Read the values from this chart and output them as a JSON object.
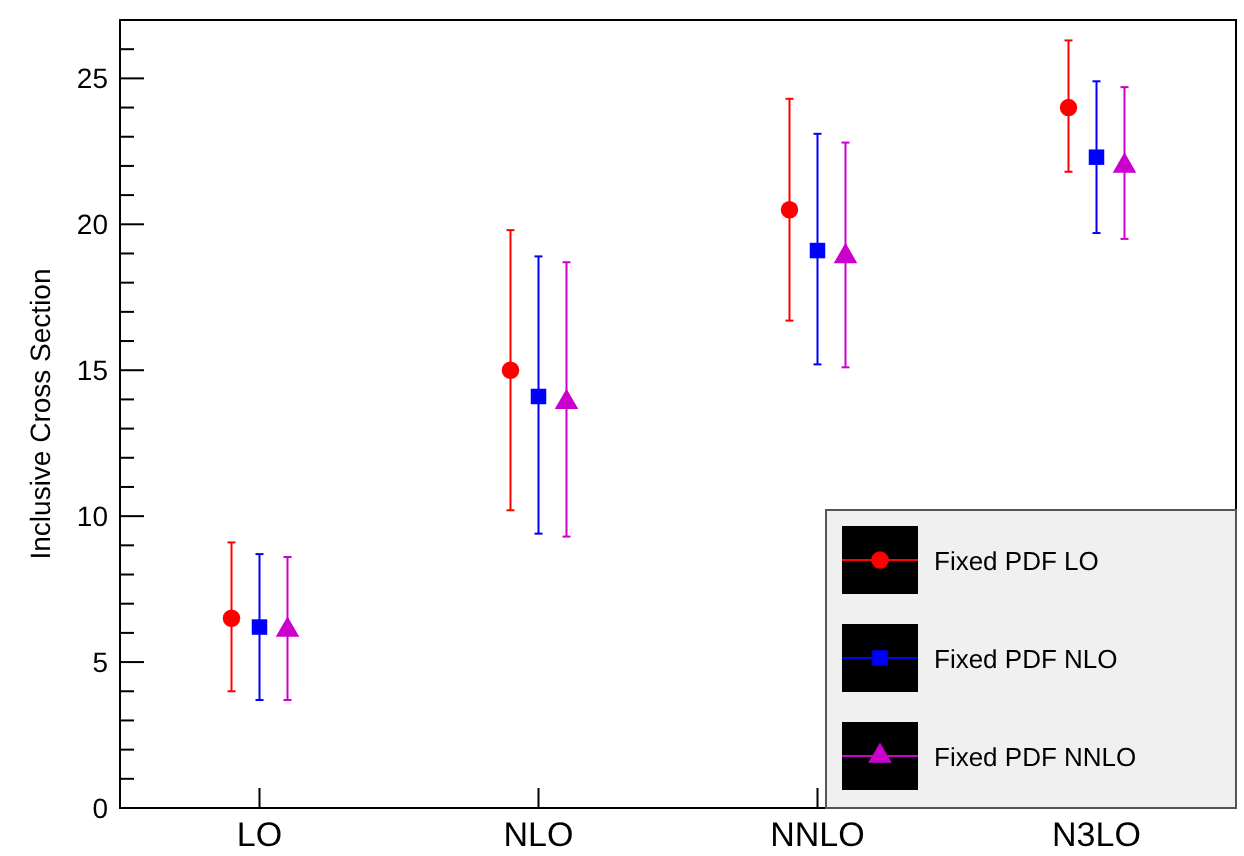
{
  "chart_data": {
    "type": "scatter",
    "ylabel": "Inclusive Cross Section",
    "categories": [
      "LO",
      "NLO",
      "NNLO",
      "N3LO"
    ],
    "series": [
      {
        "name": "Fixed PDF LO",
        "color": "#ff0000",
        "marker": "circle",
        "values": [
          6.5,
          15.0,
          20.5,
          24.0
        ],
        "errors": [
          [
            4.0,
            9.1
          ],
          [
            10.2,
            19.8
          ],
          [
            16.7,
            24.3
          ],
          [
            21.8,
            26.3
          ]
        ]
      },
      {
        "name": "Fixed PDF NLO",
        "color": "#0000ff",
        "marker": "square",
        "values": [
          6.2,
          14.1,
          19.1,
          22.3
        ],
        "errors": [
          [
            3.7,
            8.7
          ],
          [
            9.4,
            18.9
          ],
          [
            15.2,
            23.1
          ],
          [
            19.7,
            24.9
          ]
        ]
      },
      {
        "name": "Fixed PDF NNLO",
        "color": "#cc00cc",
        "marker": "triangle",
        "values": [
          6.1,
          13.9,
          18.9,
          22.0
        ],
        "errors": [
          [
            3.7,
            8.6
          ],
          [
            9.3,
            18.7
          ],
          [
            15.1,
            22.8
          ],
          [
            19.5,
            24.7
          ]
        ]
      }
    ],
    "ylim": [
      0,
      27
    ],
    "yticks": [
      0,
      {
        "value": 1,
        "label": null
      },
      {
        "value": 2,
        "label": null
      },
      {
        "value": 3,
        "label": null
      },
      {
        "value": 4,
        "label": null
      },
      5,
      {
        "value": 6,
        "label": null
      },
      {
        "value": 7,
        "label": null
      },
      {
        "value": 8,
        "label": null
      },
      {
        "value": 9,
        "label": null
      },
      10,
      {
        "value": 11,
        "label": null
      },
      {
        "value": 12,
        "label": null
      },
      {
        "value": 13,
        "label": null
      },
      {
        "value": 14,
        "label": null
      },
      15,
      {
        "value": 16,
        "label": null
      },
      {
        "value": 17,
        "label": null
      },
      {
        "value": 18,
        "label": null
      },
      {
        "value": 19,
        "label": null
      },
      20,
      {
        "value": 21,
        "label": null
      },
      {
        "value": 22,
        "label": null
      },
      {
        "value": 23,
        "label": null
      },
      {
        "value": 24,
        "label": null
      },
      25,
      {
        "value": 26,
        "label": null
      },
      {
        "value": 27,
        "label": null
      }
    ],
    "legend": "bottom right",
    "grid": false
  }
}
